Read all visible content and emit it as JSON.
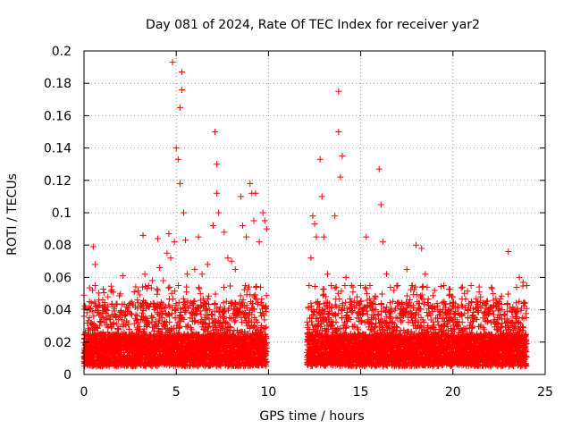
{
  "chart_data": {
    "type": "scatter",
    "title": "Day 081 of 2024, Rate Of TEC Index for receiver yar2",
    "xlabel": "GPS time / hours",
    "ylabel": "ROTI / TECUs",
    "xlim": [
      0,
      25
    ],
    "ylim": [
      0,
      0.2
    ],
    "x_ticks": [
      0,
      5,
      10,
      15,
      20,
      25
    ],
    "x_tick_labels": [
      "0",
      "5",
      "10",
      "15",
      "20",
      "25"
    ],
    "y_ticks": [
      0,
      0.02,
      0.04,
      0.06,
      0.08,
      0.1,
      0.12,
      0.14,
      0.16,
      0.18,
      0.2
    ],
    "y_tick_labels": [
      "0",
      "0.02",
      "0.04",
      "0.06",
      "0.08",
      "0.1",
      "0.12",
      "0.14",
      "0.16",
      "0.18",
      "0.2"
    ],
    "grid": true,
    "marker": "+",
    "color": "#ff0000",
    "coverage_segments": [
      [
        0.0,
        9.9
      ],
      [
        12.1,
        24.0
      ]
    ],
    "baseline_range": [
      0.005,
      0.025
    ],
    "series": [
      {
        "name": "yar2",
        "description_points": "representative outliers above the dense baseline band",
        "x": [
          0.0,
          0.0,
          0.1,
          0.3,
          0.5,
          0.6,
          0.6,
          0.8,
          1.0,
          1.2,
          1.3,
          2.0,
          2.1,
          2.5,
          3.2,
          3.3,
          3.5,
          3.7,
          4.0,
          4.1,
          4.3,
          4.5,
          4.6,
          4.7,
          4.8,
          4.9,
          5.0,
          5.1,
          5.2,
          5.2,
          5.3,
          5.3,
          5.4,
          5.5,
          5.6,
          6.0,
          6.2,
          6.4,
          6.7,
          7.0,
          7.1,
          7.2,
          7.2,
          7.3,
          7.6,
          7.8,
          8.0,
          8.2,
          8.5,
          8.6,
          8.8,
          9.0,
          9.1,
          9.2,
          9.3,
          9.5,
          9.7,
          9.8,
          9.9,
          12.2,
          12.3,
          12.4,
          12.5,
          12.6,
          12.8,
          12.9,
          13.0,
          13.2,
          13.4,
          13.6,
          13.8,
          13.8,
          13.9,
          14.0,
          14.2,
          14.5,
          14.8,
          15.0,
          15.3,
          15.5,
          15.8,
          16.0,
          16.1,
          16.2,
          16.4,
          16.8,
          17.0,
          17.5,
          17.8,
          18.0,
          18.3,
          18.5,
          19.0,
          19.5,
          20.0,
          20.5,
          21.0,
          21.5,
          22.0,
          22.5,
          23.0,
          23.3,
          23.6,
          23.8,
          24.0
        ],
        "y": [
          0.049,
          0.036,
          0.018,
          0.045,
          0.079,
          0.068,
          0.055,
          0.046,
          0.042,
          0.038,
          0.048,
          0.039,
          0.061,
          0.044,
          0.086,
          0.062,
          0.055,
          0.058,
          0.084,
          0.066,
          0.058,
          0.075,
          0.087,
          0.072,
          0.193,
          0.082,
          0.14,
          0.133,
          0.165,
          0.118,
          0.187,
          0.176,
          0.1,
          0.083,
          0.062,
          0.065,
          0.085,
          0.062,
          0.068,
          0.092,
          0.15,
          0.13,
          0.112,
          0.1,
          0.088,
          0.072,
          0.07,
          0.065,
          0.11,
          0.092,
          0.085,
          0.118,
          0.112,
          0.095,
          0.112,
          0.082,
          0.1,
          0.095,
          0.09,
          0.055,
          0.072,
          0.098,
          0.093,
          0.085,
          0.133,
          0.11,
          0.085,
          0.062,
          0.055,
          0.098,
          0.175,
          0.15,
          0.122,
          0.135,
          0.06,
          0.055,
          0.048,
          0.055,
          0.085,
          0.055,
          0.048,
          0.127,
          0.105,
          0.082,
          0.062,
          0.052,
          0.055,
          0.065,
          0.055,
          0.08,
          0.078,
          0.062,
          0.052,
          0.055,
          0.048,
          0.042,
          0.045,
          0.048,
          0.038,
          0.045,
          0.076,
          0.04,
          0.06,
          0.057,
          0.055
        ]
      }
    ]
  }
}
